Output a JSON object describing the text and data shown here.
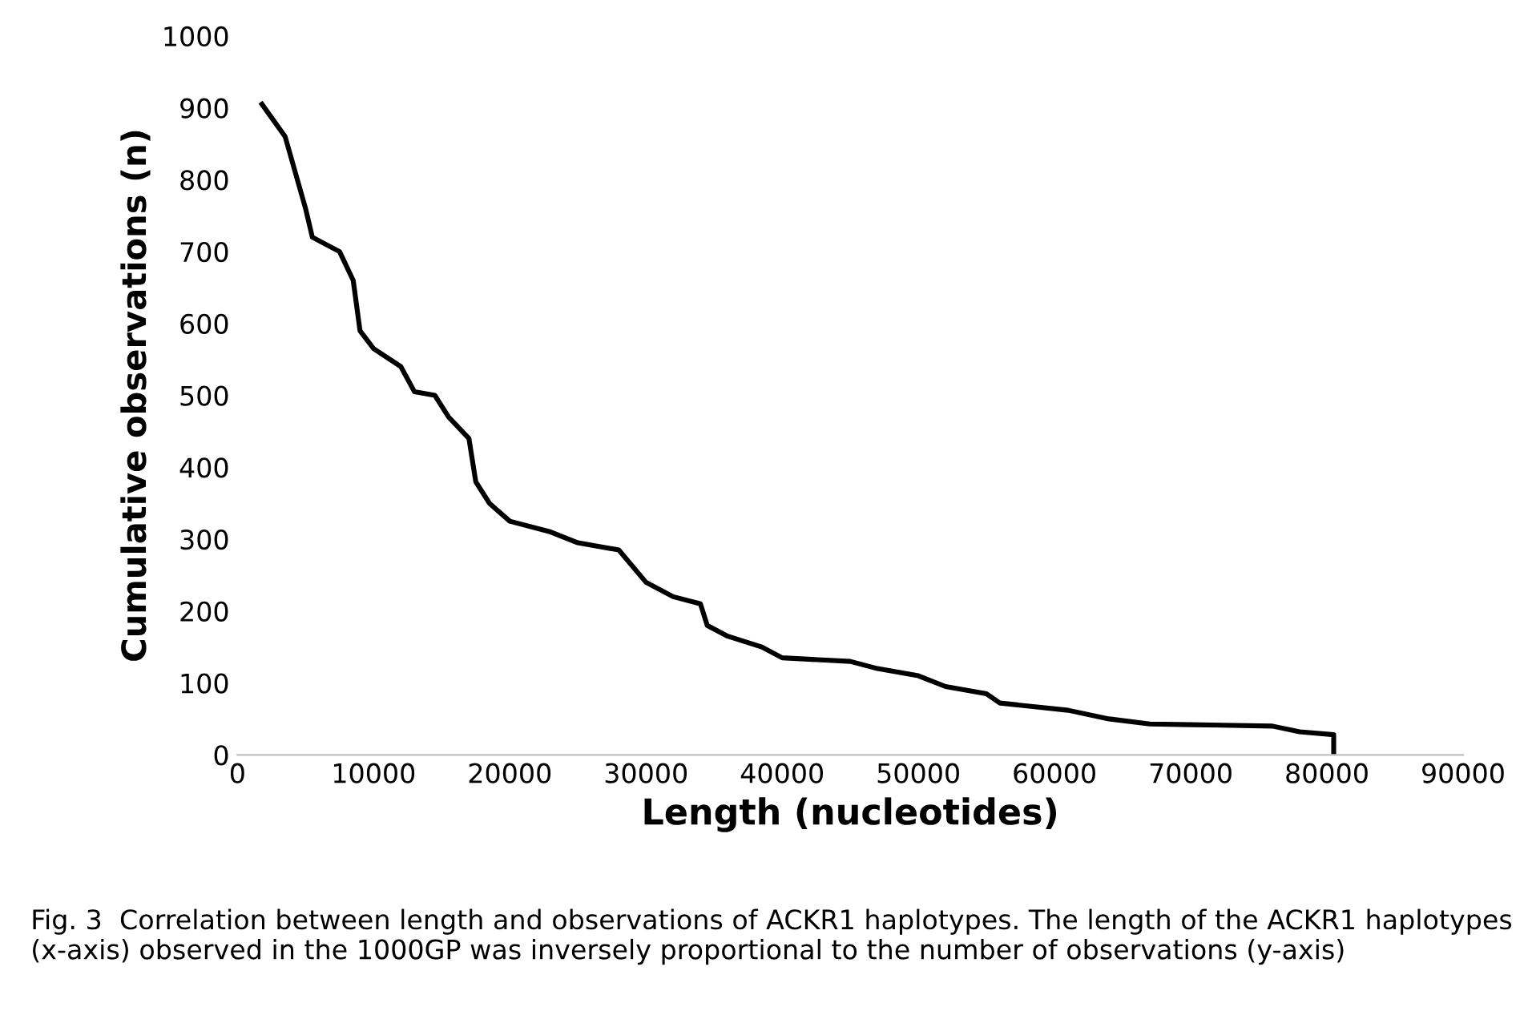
{
  "chart_data": {
    "type": "line",
    "xlabel": "Length (nucleotides)",
    "ylabel": "Cumulative observations (n)",
    "annotations": [
      "Fig. 3  Correlation between length and observations of ACKR1 haplotypes. The length of the ACKR1 haplotypes (x-axis) observed in the 1000GP was inversely proportional to the number of observations (y-axis)"
    ],
    "series": [
      {
        "color": "#000000",
        "x": [
          1800,
          3500,
          5000,
          5500,
          7500,
          8500,
          9000,
          10000,
          12000,
          13000,
          14500,
          15500,
          17000,
          17500,
          18500,
          20000,
          23000,
          25000,
          28000,
          30000,
          32000,
          34000,
          34500,
          36000,
          38500,
          40000,
          45000,
          47000,
          50000,
          52000,
          55000,
          56000,
          58000,
          61000,
          64000,
          67000,
          70000,
          76000,
          78000,
          80500,
          80500
        ],
        "values": [
          905,
          860,
          760,
          720,
          700,
          660,
          590,
          565,
          540,
          505,
          500,
          470,
          440,
          380,
          350,
          325,
          310,
          295,
          285,
          240,
          220,
          210,
          180,
          165,
          150,
          135,
          130,
          120,
          110,
          95,
          85,
          72,
          68,
          62,
          50,
          43,
          42,
          40,
          32,
          28,
          0
        ]
      }
    ],
    "xlim": [
      0,
      90000
    ],
    "xticks": [
      0,
      10000,
      20000,
      30000,
      40000,
      50000,
      60000,
      70000,
      80000,
      90000
    ],
    "ylim": [
      0,
      1000
    ],
    "yticks": [
      0,
      100,
      200,
      300,
      400,
      500,
      600,
      700,
      800,
      900,
      1000
    ],
    "grid": false,
    "legend": false,
    "line_style": "solid",
    "marker": "none"
  }
}
